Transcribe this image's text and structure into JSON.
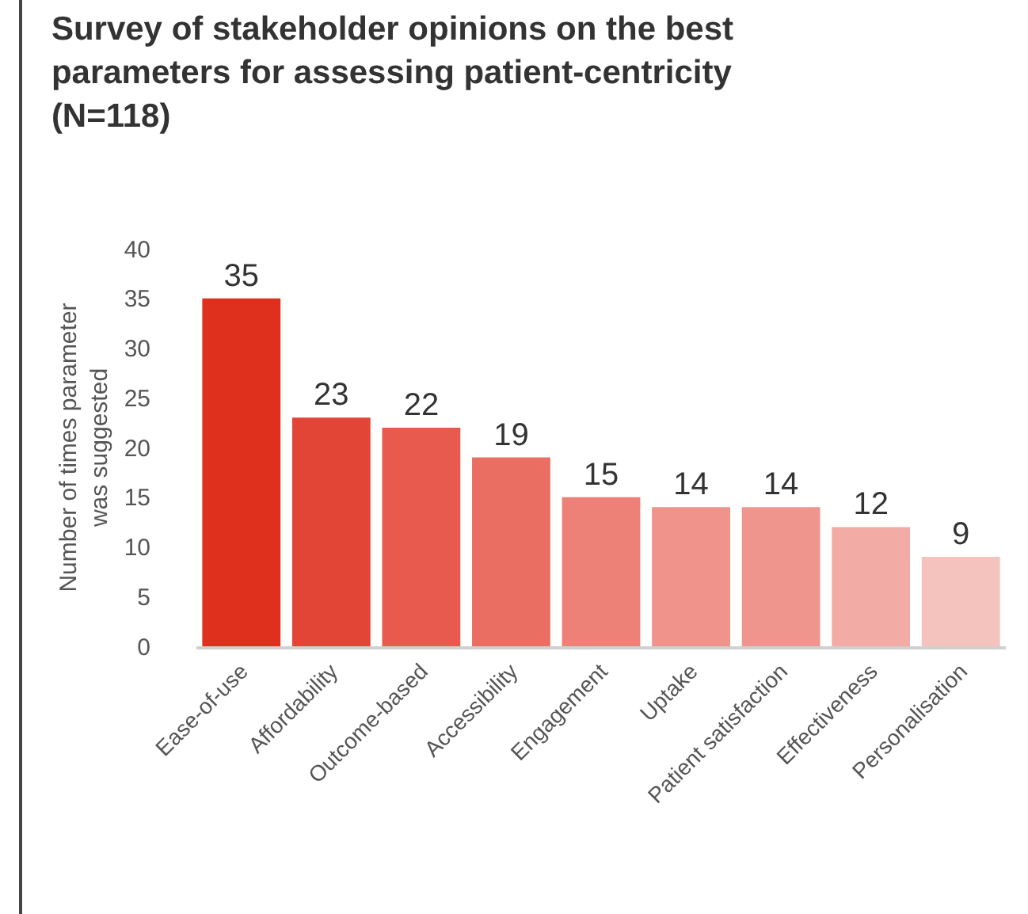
{
  "chart_data": {
    "type": "bar",
    "title": "Survey of stakeholder opinions on the best parameters for assessing patient-centricity (N=118)",
    "ylabel": "Number of times parameter was suggested",
    "categories": [
      "Ease-of-use",
      "Affordability",
      "Outcome-based",
      "Accessibility",
      "Engagement",
      "Uptake",
      "Patient satisfaction",
      "Effectiveness",
      "Personalisation"
    ],
    "values": [
      35,
      23,
      22,
      19,
      15,
      14,
      14,
      12,
      9
    ],
    "colors": [
      "#df301e",
      "#e24535",
      "#e75a4d",
      "#ea6e62",
      "#ed8077",
      "#ef938b",
      "#ef958d",
      "#f2aba5",
      "#f4c3bd"
    ],
    "ylim": [
      0,
      40
    ],
    "yticks": [
      0,
      5,
      10,
      15,
      20,
      25,
      30,
      35,
      40
    ],
    "grid": false,
    "data_labels": true,
    "legend": false
  }
}
